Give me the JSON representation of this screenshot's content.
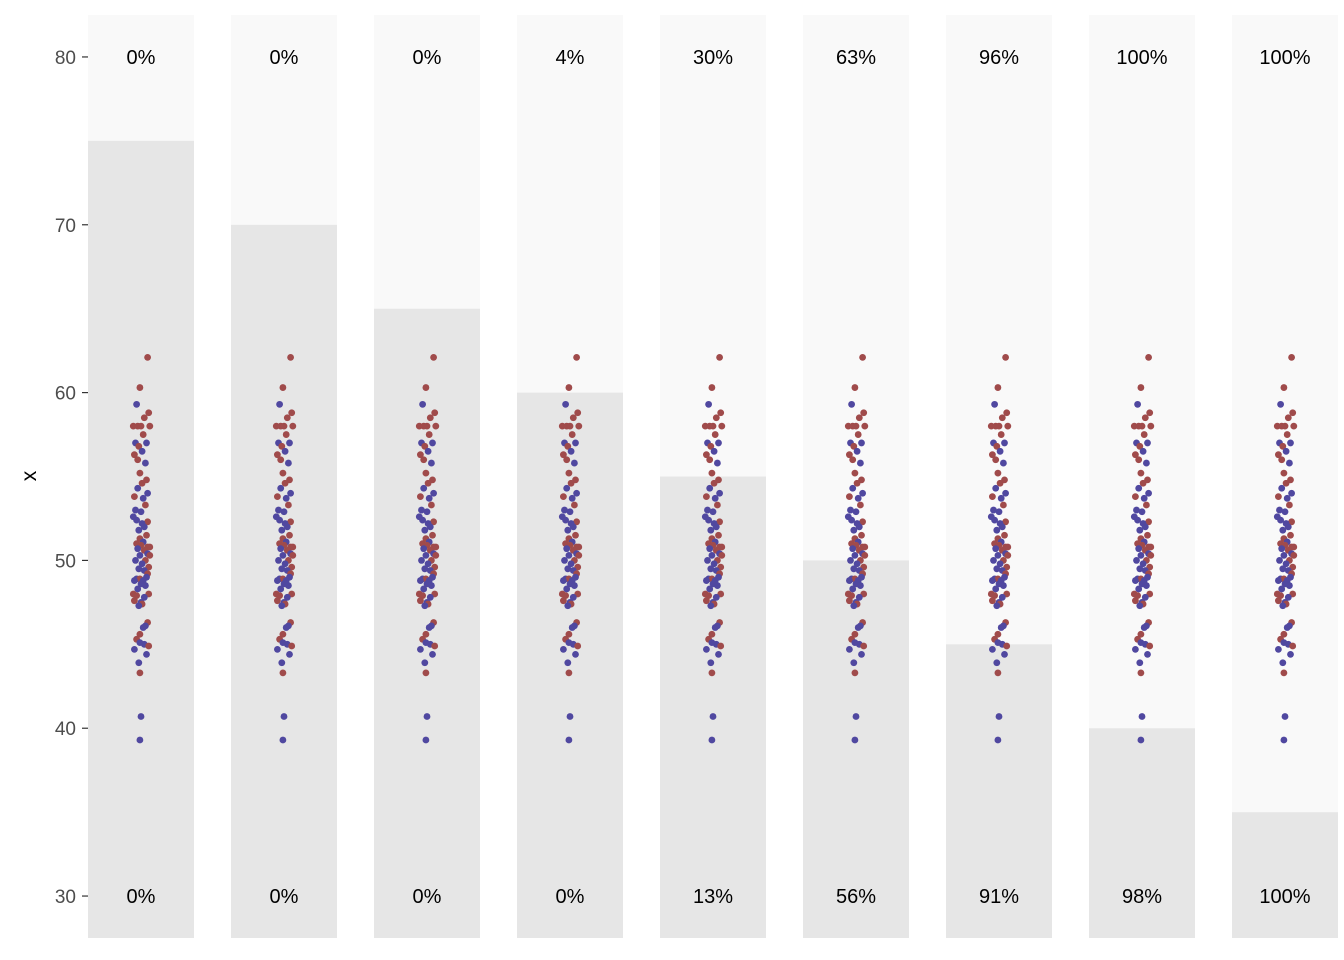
{
  "chart_data": {
    "type": "scatter",
    "title": "",
    "xlabel": "",
    "ylabel": "x",
    "ylim": [
      27.5,
      82.5
    ],
    "yticks": [
      30,
      40,
      50,
      60,
      70,
      80
    ],
    "grid": false,
    "legend": "none",
    "colors": {
      "panel_upper": "#f9f9f9",
      "panel_lower": "#e6e6e6",
      "group_a": "#5048a0",
      "group_b": "#a04b4b",
      "tick": "#333333"
    },
    "panels": [
      {
        "threshold": 75,
        "top_label": "0%",
        "bottom_label": "0%"
      },
      {
        "threshold": 70,
        "top_label": "0%",
        "bottom_label": "0%"
      },
      {
        "threshold": 65,
        "top_label": "0%",
        "bottom_label": "0%"
      },
      {
        "threshold": 60,
        "top_label": "4%",
        "bottom_label": "0%"
      },
      {
        "threshold": 55,
        "top_label": "30%",
        "bottom_label": "13%"
      },
      {
        "threshold": 50,
        "top_label": "63%",
        "bottom_label": "56%"
      },
      {
        "threshold": 45,
        "top_label": "96%",
        "bottom_label": "91%"
      },
      {
        "threshold": 40,
        "top_label": "100%",
        "bottom_label": "98%"
      },
      {
        "threshold": 35,
        "top_label": "100%",
        "bottom_label": "100%"
      }
    ],
    "points": [
      {
        "g": "b",
        "dx": 0.6,
        "y": 62.1
      },
      {
        "g": "b",
        "dx": -0.1,
        "y": 60.3
      },
      {
        "g": "a",
        "dx": -0.4,
        "y": 59.3
      },
      {
        "g": "b",
        "dx": 0.7,
        "y": 58.8
      },
      {
        "g": "b",
        "dx": 0.3,
        "y": 58.5
      },
      {
        "g": "b",
        "dx": -0.7,
        "y": 58.0
      },
      {
        "g": "b",
        "dx": -0.3,
        "y": 58.0
      },
      {
        "g": "b",
        "dx": 0.0,
        "y": 58.0
      },
      {
        "g": "b",
        "dx": 0.8,
        "y": 58.0
      },
      {
        "g": "b",
        "dx": 0.2,
        "y": 57.5
      },
      {
        "g": "a",
        "dx": -0.5,
        "y": 57.0
      },
      {
        "g": "a",
        "dx": 0.5,
        "y": 57.0
      },
      {
        "g": "b",
        "dx": -0.2,
        "y": 56.8
      },
      {
        "g": "a",
        "dx": 0.1,
        "y": 56.5
      },
      {
        "g": "b",
        "dx": -0.6,
        "y": 56.3
      },
      {
        "g": "b",
        "dx": -0.3,
        "y": 56.0
      },
      {
        "g": "a",
        "dx": 0.4,
        "y": 55.8
      },
      {
        "g": "b",
        "dx": -0.1,
        "y": 55.2
      },
      {
        "g": "b",
        "dx": 0.5,
        "y": 54.8
      },
      {
        "g": "b",
        "dx": 0.1,
        "y": 54.6
      },
      {
        "g": "a",
        "dx": -0.3,
        "y": 54.3
      },
      {
        "g": "a",
        "dx": 0.6,
        "y": 54.0
      },
      {
        "g": "b",
        "dx": -0.6,
        "y": 53.8
      },
      {
        "g": "a",
        "dx": 0.2,
        "y": 53.7
      },
      {
        "g": "b",
        "dx": 0.4,
        "y": 53.3
      },
      {
        "g": "a",
        "dx": -0.5,
        "y": 53.0
      },
      {
        "g": "a",
        "dx": 0.0,
        "y": 52.9
      },
      {
        "g": "a",
        "dx": -0.7,
        "y": 52.6
      },
      {
        "g": "a",
        "dx": -0.4,
        "y": 52.4
      },
      {
        "g": "b",
        "dx": 0.6,
        "y": 52.3
      },
      {
        "g": "a",
        "dx": 0.1,
        "y": 52.2
      },
      {
        "g": "a",
        "dx": 0.3,
        "y": 52.0
      },
      {
        "g": "a",
        "dx": -0.2,
        "y": 51.8
      },
      {
        "g": "b",
        "dx": 0.5,
        "y": 51.5
      },
      {
        "g": "b",
        "dx": -0.1,
        "y": 51.3
      },
      {
        "g": "a",
        "dx": 0.2,
        "y": 51.1
      },
      {
        "g": "b",
        "dx": -0.4,
        "y": 51.0
      },
      {
        "g": "b",
        "dx": 0.0,
        "y": 50.9
      },
      {
        "g": "b",
        "dx": 0.6,
        "y": 50.8
      },
      {
        "g": "b",
        "dx": 0.8,
        "y": 50.8
      },
      {
        "g": "a",
        "dx": -0.3,
        "y": 50.7
      },
      {
        "g": "b",
        "dx": 0.3,
        "y": 50.6
      },
      {
        "g": "a",
        "dx": 0.6,
        "y": 50.4
      },
      {
        "g": "a",
        "dx": -0.1,
        "y": 50.3
      },
      {
        "g": "b",
        "dx": 0.8,
        "y": 50.3
      },
      {
        "g": "b",
        "dx": 0.4,
        "y": 50.0
      },
      {
        "g": "a",
        "dx": -0.5,
        "y": 50.0
      },
      {
        "g": "a",
        "dx": 0.1,
        "y": 49.8
      },
      {
        "g": "b",
        "dx": 0.7,
        "y": 49.6
      },
      {
        "g": "a",
        "dx": -0.2,
        "y": 49.5
      },
      {
        "g": "a",
        "dx": 0.3,
        "y": 49.4
      },
      {
        "g": "b",
        "dx": 0.6,
        "y": 49.2
      },
      {
        "g": "a",
        "dx": 0.5,
        "y": 49.0
      },
      {
        "g": "a",
        "dx": -0.4,
        "y": 48.9
      },
      {
        "g": "b",
        "dx": -0.1,
        "y": 48.9
      },
      {
        "g": "a",
        "dx": -0.6,
        "y": 48.8
      },
      {
        "g": "a",
        "dx": 0.2,
        "y": 48.8
      },
      {
        "g": "a",
        "dx": 0.0,
        "y": 48.6
      },
      {
        "g": "a",
        "dx": 0.4,
        "y": 48.5
      },
      {
        "g": "a",
        "dx": -0.3,
        "y": 48.3
      },
      {
        "g": "b",
        "dx": 0.7,
        "y": 48.0
      },
      {
        "g": "b",
        "dx": -0.7,
        "y": 48.0
      },
      {
        "g": "b",
        "dx": -0.4,
        "y": 47.9
      },
      {
        "g": "a",
        "dx": 0.3,
        "y": 47.8
      },
      {
        "g": "b",
        "dx": -0.6,
        "y": 47.6
      },
      {
        "g": "a",
        "dx": 0.0,
        "y": 47.5
      },
      {
        "g": "b",
        "dx": 0.1,
        "y": 47.4
      },
      {
        "g": "a",
        "dx": -0.2,
        "y": 47.3
      },
      {
        "g": "b",
        "dx": 0.6,
        "y": 46.3
      },
      {
        "g": "a",
        "dx": 0.4,
        "y": 46.1
      },
      {
        "g": "a",
        "dx": 0.2,
        "y": 46.0
      },
      {
        "g": "b",
        "dx": -0.1,
        "y": 45.6
      },
      {
        "g": "b",
        "dx": -0.4,
        "y": 45.3
      },
      {
        "g": "a",
        "dx": -0.1,
        "y": 45.1
      },
      {
        "g": "a",
        "dx": 0.3,
        "y": 45.0
      },
      {
        "g": "b",
        "dx": 0.7,
        "y": 44.9
      },
      {
        "g": "a",
        "dx": -0.6,
        "y": 44.7
      },
      {
        "g": "a",
        "dx": 0.5,
        "y": 44.4
      },
      {
        "g": "a",
        "dx": -0.2,
        "y": 43.9
      },
      {
        "g": "b",
        "dx": -0.1,
        "y": 43.3
      },
      {
        "g": "a",
        "dx": 0.0,
        "y": 40.7
      },
      {
        "g": "a",
        "dx": -0.1,
        "y": 39.3
      }
    ]
  }
}
